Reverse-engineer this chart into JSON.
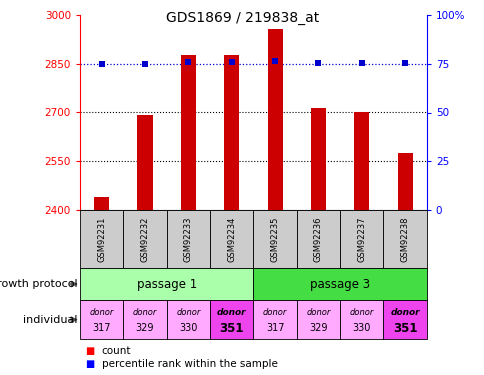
{
  "title": "GDS1869 / 219838_at",
  "samples": [
    "GSM92231",
    "GSM92232",
    "GSM92233",
    "GSM92234",
    "GSM92235",
    "GSM92236",
    "GSM92237",
    "GSM92238"
  ],
  "counts": [
    2440,
    2693,
    2878,
    2878,
    2958,
    2715,
    2702,
    2575
  ],
  "percentile_values": [
    2850,
    2850,
    2855,
    2855,
    2858,
    2852,
    2852,
    2852
  ],
  "y_min": 2400,
  "y_max": 3000,
  "y_ticks": [
    2400,
    2550,
    2700,
    2850,
    3000
  ],
  "y2_ticks": [
    0,
    25,
    50,
    75,
    100
  ],
  "bar_color": "#cc0000",
  "dot_color": "#0000cc",
  "passage1_color": "#aaffaa",
  "passage3_color": "#44dd44",
  "donor_colors_light": "#ffaaff",
  "donor_colors_dark": "#ee44ee",
  "donor_labels_top": [
    "donor",
    "donor",
    "donor",
    "donor",
    "donor",
    "donor",
    "donor",
    "donor"
  ],
  "donor_labels_bot": [
    "317",
    "329",
    "330",
    "351",
    "317",
    "329",
    "330",
    "351"
  ],
  "donor_bold": [
    false,
    false,
    false,
    true,
    false,
    false,
    false,
    true
  ],
  "growth_protocol_label": "growth protocol",
  "individual_label": "individual",
  "legend_count": "count",
  "legend_percentile": "percentile rank within the sample",
  "passage1_label": "passage 1",
  "passage3_label": "passage 3",
  "figsize": [
    4.85,
    3.75
  ],
  "dpi": 100
}
